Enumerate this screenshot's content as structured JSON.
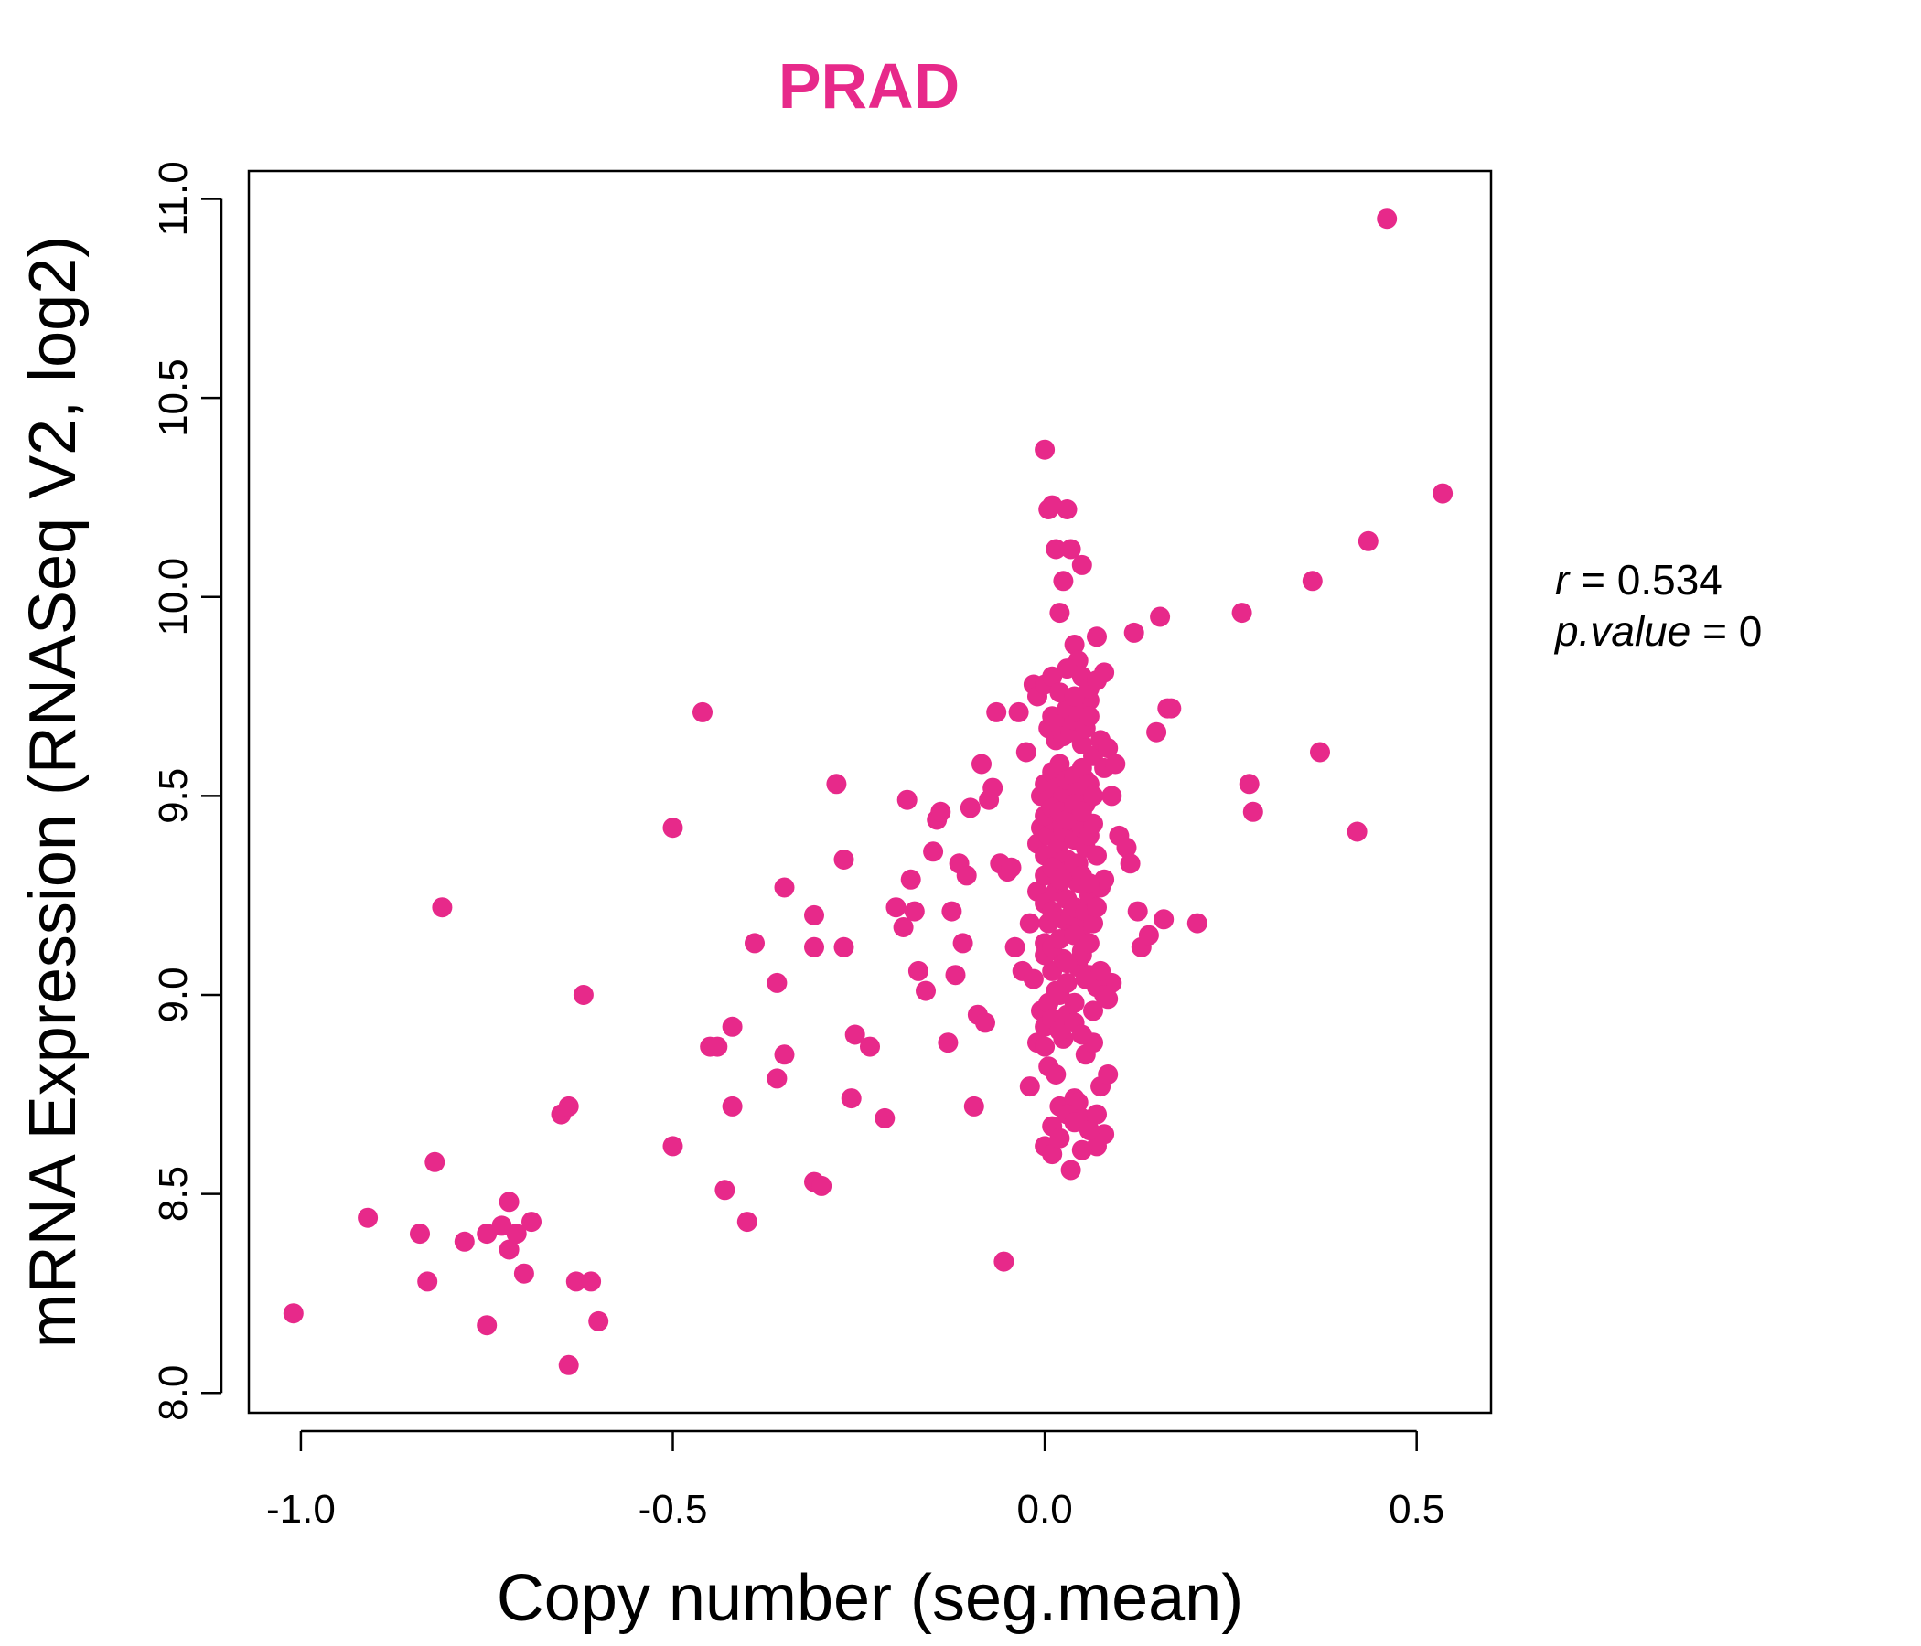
{
  "chart_data": {
    "type": "scatter",
    "title": "PRAD",
    "xlabel": "Copy number (seg.mean)",
    "ylabel": "mRNA Expression (RNASeq V2, log2)",
    "xlim": [
      -1.07,
      0.6
    ],
    "ylim": [
      7.95,
      11.07
    ],
    "x_ticks": [
      -1.0,
      -0.5,
      0.0,
      0.5
    ],
    "x_tick_labels": [
      "-1.0",
      "-0.5",
      "0.0",
      "0.5"
    ],
    "y_ticks": [
      8.0,
      8.5,
      9.0,
      9.5,
      10.0,
      10.5,
      11.0
    ],
    "y_tick_labels": [
      "8.0",
      "8.5",
      "9.0",
      "9.5",
      "10.0",
      "10.5",
      "11.0"
    ],
    "grid": false,
    "point_color": "#e7298a",
    "annotation": {
      "r_label": "r",
      "r_value": "0.534",
      "p_label": "p.value",
      "p_value": "0"
    },
    "x": [
      -1.01,
      -0.91,
      -0.84,
      -0.82,
      -0.83,
      -0.81,
      -0.78,
      -0.75,
      -0.75,
      -0.73,
      -0.72,
      -0.72,
      -0.71,
      -0.7,
      -0.69,
      -0.65,
      -0.64,
      -0.64,
      -0.63,
      -0.62,
      -0.61,
      -0.6,
      -0.5,
      -0.5,
      -0.46,
      -0.45,
      -0.44,
      -0.43,
      -0.42,
      -0.42,
      -0.4,
      -0.39,
      -0.36,
      -0.36,
      -0.35,
      -0.35,
      -0.31,
      -0.31,
      -0.31,
      -0.3,
      -0.28,
      -0.27,
      -0.27,
      -0.26,
      -0.255,
      -0.235,
      -0.215,
      -0.2,
      -0.19,
      -0.185,
      -0.18,
      -0.175,
      -0.17,
      -0.16,
      -0.15,
      -0.145,
      -0.14,
      -0.13,
      -0.125,
      -0.12,
      -0.115,
      -0.11,
      -0.105,
      -0.1,
      -0.095,
      -0.09,
      -0.085,
      -0.08,
      -0.075,
      -0.07,
      -0.065,
      -0.06,
      -0.055,
      -0.05,
      -0.045,
      -0.04,
      -0.035,
      -0.03,
      -0.025,
      -0.02,
      -0.015,
      -0.01,
      -0.005,
      0.0,
      0.005,
      0.01,
      0.015,
      0.02,
      0.025,
      0.03,
      0.035,
      0.04,
      0.045,
      0.05,
      0.055,
      0.06,
      0.065,
      0.07,
      0.075,
      0.08,
      0.085,
      0.09,
      0.095,
      0.1,
      0.11,
      0.115,
      0.12,
      0.125,
      0.13,
      0.14,
      0.15,
      0.155,
      0.16,
      0.165,
      0.17,
      0.205,
      0.265,
      0.275,
      0.28,
      0.36,
      0.37,
      0.42,
      0.435,
      0.46,
      0.535,
      -0.02,
      -0.01,
      0.0,
      0.005,
      0.01,
      0.015,
      0.02,
      0.025,
      0.03,
      0.035,
      0.04,
      0.045,
      0.05,
      0.055,
      0.06,
      0.065,
      0.07,
      0.075,
      0.08,
      0.085,
      0.09,
      -0.015,
      -0.005,
      0.0,
      0.005,
      0.01,
      0.015,
      0.02,
      0.025,
      0.03,
      0.035,
      0.04,
      0.045,
      0.05,
      0.055,
      0.06,
      0.065,
      0.07,
      0.075,
      0.08,
      0.085,
      -0.01,
      0.0,
      0.005,
      0.01,
      0.015,
      0.02,
      0.025,
      0.03,
      0.035,
      0.04,
      0.045,
      0.05,
      0.055,
      0.06,
      0.065,
      0.07,
      0.075,
      0.08,
      -0.01,
      -0.005,
      0.0,
      0.005,
      0.01,
      0.015,
      0.02,
      0.025,
      0.03,
      0.035,
      0.04,
      0.045,
      0.05,
      0.055,
      0.06,
      0.065,
      0.07,
      0.0,
      0.005,
      0.01,
      0.015,
      0.02,
      0.025,
      0.03,
      0.035,
      0.04,
      0.045,
      0.05,
      0.055,
      0.06,
      0.065,
      0.005,
      0.01,
      0.015,
      0.02,
      0.025,
      0.03,
      0.035,
      0.04,
      0.045,
      0.05,
      0.055,
      0.06,
      0.0,
      0.01,
      0.02,
      0.03,
      0.04,
      0.05,
      0.06,
      0.07,
      0.08,
      0.0,
      0.01,
      0.02,
      0.03,
      0.04,
      0.05,
      0.06,
      0.07,
      0.0,
      0.01,
      0.02,
      0.03,
      0.04,
      0.05,
      0.06,
      0.0,
      0.01,
      0.02,
      0.03,
      0.04,
      0.05,
      0.06,
      0.0,
      0.01,
      0.02,
      0.03,
      0.04,
      0.05,
      0.0,
      0.01,
      0.02,
      0.03,
      0.04,
      0.05
    ],
    "y": [
      8.2,
      8.44,
      8.4,
      8.58,
      8.28,
      9.22,
      8.38,
      8.17,
      8.4,
      8.42,
      8.48,
      8.36,
      8.4,
      8.3,
      8.43,
      8.7,
      8.72,
      8.07,
      8.28,
      9.0,
      8.28,
      8.18,
      9.42,
      8.62,
      9.71,
      8.87,
      8.87,
      8.51,
      8.72,
      8.92,
      8.43,
      9.13,
      9.03,
      8.79,
      8.85,
      9.27,
      9.2,
      9.12,
      8.53,
      8.52,
      9.53,
      9.34,
      9.12,
      8.74,
      8.9,
      8.87,
      8.69,
      9.22,
      9.17,
      9.49,
      9.29,
      9.21,
      9.06,
      9.01,
      9.36,
      9.44,
      9.46,
      8.88,
      9.21,
      9.05,
      9.33,
      9.13,
      9.3,
      9.47,
      8.72,
      8.95,
      9.58,
      8.93,
      9.49,
      9.52,
      9.71,
      9.33,
      8.33,
      9.31,
      9.32,
      9.12,
      9.71,
      9.06,
      9.61,
      9.18,
      9.78,
      9.75,
      9.5,
      10.37,
      10.22,
      10.23,
      10.12,
      9.96,
      10.04,
      10.22,
      10.12,
      9.88,
      9.84,
      10.08,
      9.54,
      9.74,
      9.6,
      9.9,
      9.64,
      9.57,
      9.62,
      9.5,
      9.58,
      9.4,
      9.37,
      9.33,
      9.91,
      9.21,
      9.12,
      9.15,
      9.66,
      9.95,
      9.19,
      9.72,
      9.72,
      9.18,
      9.96,
      9.53,
      9.46,
      10.04,
      9.61,
      9.41,
      10.14,
      10.95,
      10.26,
      8.77,
      8.88,
      8.87,
      8.82,
      8.67,
      8.8,
      8.72,
      8.89,
      8.93,
      8.56,
      8.74,
      8.73,
      8.69,
      8.85,
      8.66,
      8.88,
      8.62,
      8.77,
      8.65,
      8.8,
      9.03,
      9.04,
      8.96,
      9.13,
      8.98,
      9.06,
      9.01,
      9.0,
      9.09,
      9.03,
      9.16,
      8.98,
      9.07,
      9.1,
      9.04,
      9.05,
      8.96,
      9.02,
      9.06,
      9.0,
      8.99,
      9.26,
      9.23,
      9.18,
      9.21,
      9.26,
      9.28,
      9.19,
      9.24,
      9.2,
      9.22,
      9.28,
      9.17,
      9.21,
      9.25,
      9.18,
      9.22,
      9.27,
      9.29,
      9.38,
      9.42,
      9.35,
      9.4,
      9.44,
      9.36,
      9.38,
      9.41,
      9.34,
      9.45,
      9.39,
      9.33,
      9.42,
      9.37,
      9.4,
      9.43,
      9.35,
      9.53,
      9.49,
      9.56,
      9.52,
      9.58,
      9.5,
      9.54,
      9.47,
      9.55,
      9.51,
      9.57,
      9.48,
      9.53,
      9.5,
      9.67,
      9.7,
      9.64,
      9.68,
      9.65,
      9.72,
      9.66,
      9.69,
      9.71,
      9.63,
      9.67,
      9.7,
      9.78,
      9.8,
      9.76,
      9.82,
      9.75,
      9.8,
      9.77,
      9.79,
      9.81,
      8.62,
      8.6,
      8.64,
      8.7,
      8.68,
      8.61,
      8.66,
      8.7,
      9.1,
      9.12,
      9.14,
      9.08,
      9.15,
      9.11,
      9.13,
      9.3,
      9.32,
      9.29,
      9.31,
      9.33,
      9.3,
      9.28,
      8.92,
      8.94,
      8.91,
      8.95,
      8.93,
      8.9,
      9.45,
      9.47,
      9.46,
      9.44,
      9.48,
      9.46
    ]
  }
}
